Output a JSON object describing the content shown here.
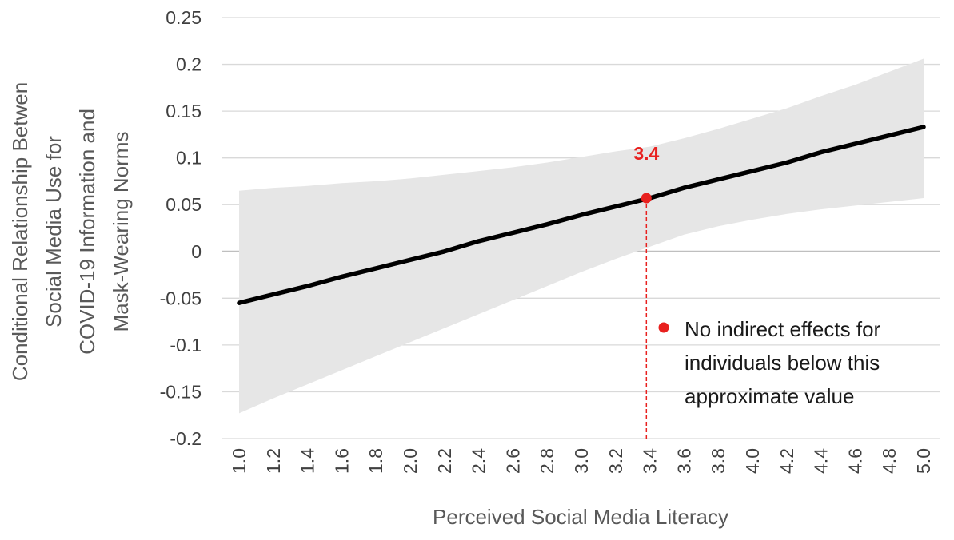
{
  "chart_data": {
    "type": "line",
    "title": "",
    "xlabel": "Perceived Social Media Literacy",
    "ylabel_lines": [
      "Conditional Relationship Betwen",
      "Social Media Use for",
      "COVID-19 Information and",
      "Mask-Wearing Norms"
    ],
    "x_ticks": [
      "1.0",
      "1.2",
      "1.4",
      "1.6",
      "1.8",
      "2.0",
      "2.2",
      "2.4",
      "2.6",
      "2.8",
      "3.0",
      "3.2",
      "3.4",
      "3.6",
      "3.8",
      "4.0",
      "4.2",
      "4.4",
      "4.6",
      "4.8",
      "5.0"
    ],
    "y_ticks": [
      "0.25",
      "0.2",
      "0.15",
      "0.1",
      "0.05",
      "0",
      "-0.05",
      "-0.1",
      "-0.15",
      "-0.2"
    ],
    "xlim": [
      1.0,
      5.0
    ],
    "ylim": [
      -0.2,
      0.25
    ],
    "grid": true,
    "series": [
      {
        "x": [
          1.0,
          1.2,
          1.4,
          1.6,
          1.8,
          2.0,
          2.2,
          2.4,
          2.6,
          2.8,
          3.0,
          3.2,
          3.4,
          3.6,
          3.8,
          4.0,
          4.2,
          4.4,
          4.6,
          4.8,
          5.0
        ],
        "y": [
          -0.055,
          -0.046,
          -0.037,
          -0.027,
          -0.018,
          -0.009,
          0.0,
          0.011,
          0.02,
          0.029,
          0.039,
          0.048,
          0.057,
          0.068,
          0.077,
          0.086,
          0.095,
          0.106,
          0.115,
          0.124,
          0.133
        ],
        "lower": [
          -0.173,
          -0.157,
          -0.142,
          -0.127,
          -0.112,
          -0.097,
          -0.082,
          -0.067,
          -0.052,
          -0.037,
          -0.022,
          -0.008,
          0.005,
          0.018,
          0.027,
          0.034,
          0.04,
          0.045,
          0.049,
          0.053,
          0.057
        ],
        "upper": [
          0.065,
          0.068,
          0.07,
          0.073,
          0.075,
          0.078,
          0.082,
          0.086,
          0.09,
          0.095,
          0.101,
          0.107,
          0.112,
          0.121,
          0.131,
          0.142,
          0.153,
          0.166,
          0.178,
          0.192,
          0.206
        ],
        "color": "#000000",
        "band_color": "#e6e6e6"
      }
    ],
    "annotation": {
      "x": 3.38,
      "y": 0.057,
      "label": "3.4",
      "color": "#e8201e"
    },
    "legend": {
      "placement": "lower-right",
      "lines": [
        "No indirect effects for",
        "individuals below this",
        "approximate value"
      ],
      "marker_color": "#e8201e"
    }
  }
}
